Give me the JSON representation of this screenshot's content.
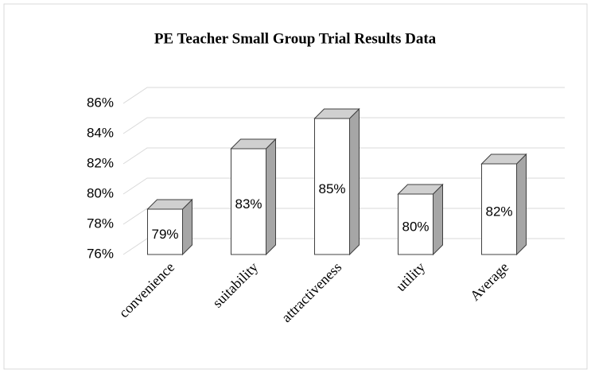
{
  "chart_data": {
    "type": "bar3d",
    "title": "PE Teacher Small Group Trial Results Data",
    "categories": [
      "convenience",
      "suitability",
      "attractiveness",
      "utility",
      "Average"
    ],
    "values": [
      79,
      83,
      85,
      80,
      82
    ],
    "value_labels": [
      "79%",
      "83%",
      "85%",
      "80%",
      "82%"
    ],
    "ylim": [
      76,
      86
    ],
    "yticks": [
      {
        "value": 76,
        "label": "76%"
      },
      {
        "value": 78,
        "label": "78%"
      },
      {
        "value": 80,
        "label": "80%"
      },
      {
        "value": 82,
        "label": "82%"
      },
      {
        "value": 84,
        "label": "84%"
      },
      {
        "value": 86,
        "label": "86%"
      }
    ],
    "grid": true,
    "color": "#ffffff"
  }
}
